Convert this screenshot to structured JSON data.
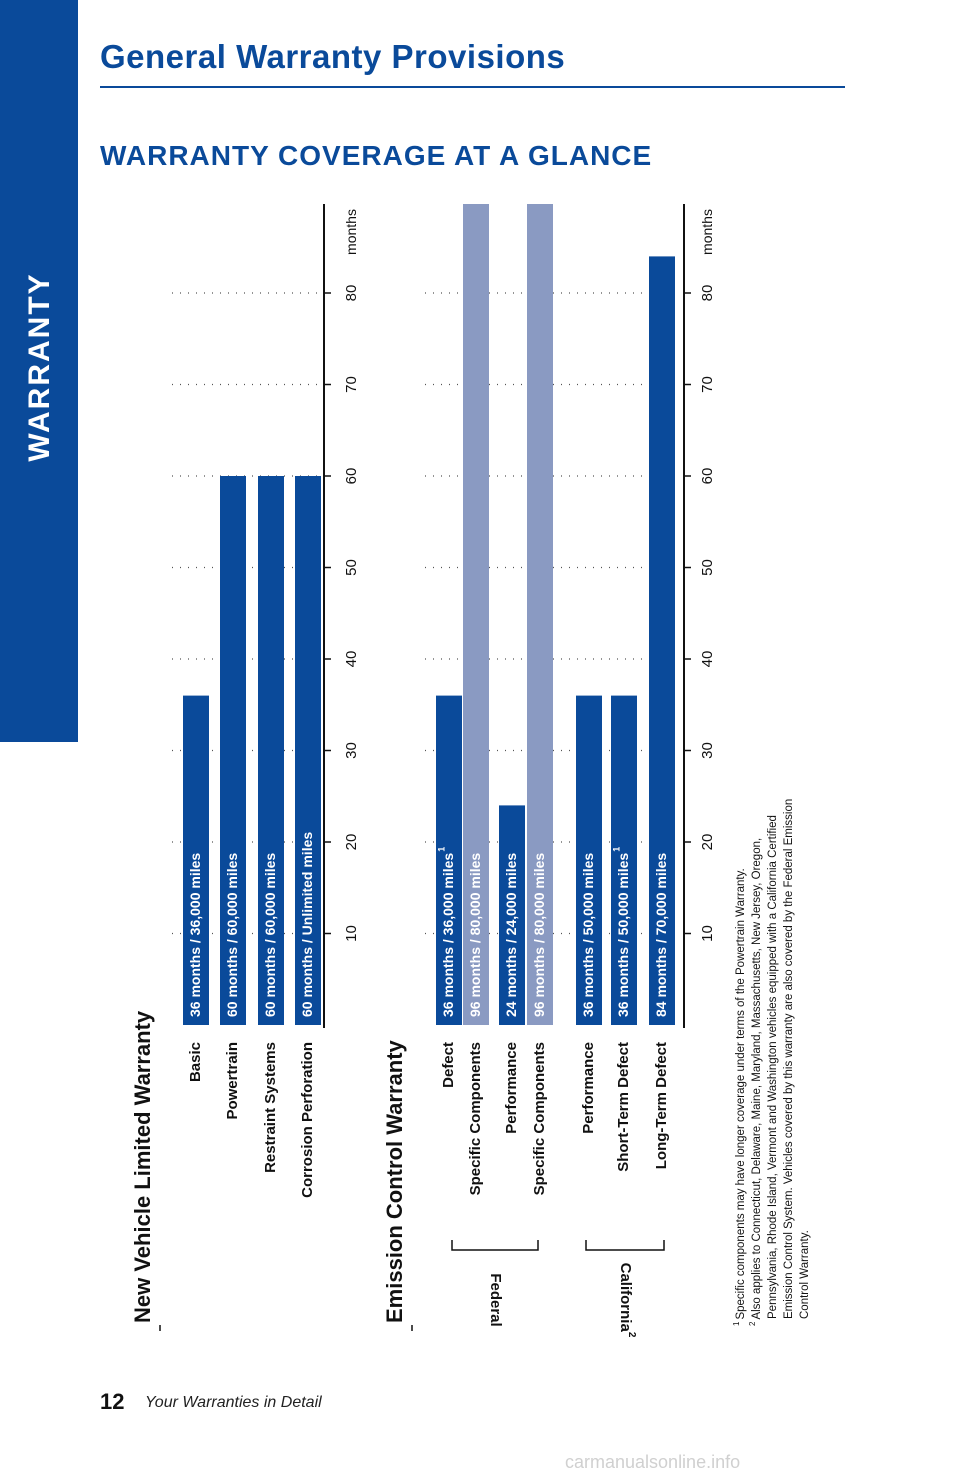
{
  "sidebar": {
    "label": "WARRANTY"
  },
  "header": {
    "title": "General Warranty Provisions"
  },
  "section": {
    "title": "WARRANTY COVERAGE AT A GLANCE"
  },
  "colors": {
    "primary": "#0a4a9a",
    "secondary": "#8a9ac2"
  },
  "chart_data": [
    {
      "type": "bar",
      "title": "New Vehicle Limited Warranty",
      "unit": "months",
      "ticks": [
        10,
        20,
        30,
        40,
        50,
        60,
        70,
        80
      ],
      "xlim": [
        0,
        90
      ],
      "grid": true,
      "rows": [
        {
          "label": "Basic",
          "value": 36,
          "bar_text": "36 months  /  36,000 miles",
          "sup": "",
          "color": "primary"
        },
        {
          "label": "Powertrain",
          "value": 60,
          "bar_text": "60 months  /  60,000 miles",
          "sup": "",
          "color": "primary"
        },
        {
          "label": "Restraint Systems",
          "value": 60,
          "bar_text": "60 months  /  60,000 miles",
          "sup": "",
          "color": "primary"
        },
        {
          "label": "Corrosion Perforation",
          "value": 60,
          "bar_text": "60 months  /  Unlimited miles",
          "sup": "",
          "color": "primary"
        }
      ]
    },
    {
      "type": "bar",
      "title": "Emission Control Warranty",
      "unit": "months",
      "ticks": [
        10,
        20,
        30,
        40,
        50,
        60,
        70,
        80
      ],
      "xlim": [
        0,
        90
      ],
      "grid": true,
      "groups": [
        {
          "label": "Federal",
          "sup": ""
        },
        {
          "label": "California",
          "sup": "2"
        }
      ],
      "rows": [
        {
          "label": "Defect",
          "value": 36,
          "bar_text": "36 months  /  36,000 miles",
          "sup": "1",
          "color": "primary"
        },
        {
          "label": "Specific Components",
          "value": 96,
          "bar_text": "96 months  /  80,000 miles",
          "sup": "",
          "color": "secondary"
        },
        {
          "label": "Performance",
          "value": 24,
          "bar_text": "24 months  /  24,000 miles",
          "sup": "",
          "color": "primary"
        },
        {
          "label": "Specific Components",
          "value": 96,
          "bar_text": "96 months  /  80,000 miles",
          "sup": "",
          "color": "secondary"
        },
        {
          "label": "Performance",
          "value": 36,
          "bar_text": "36 months  /  50,000 miles",
          "sup": "",
          "color": "primary"
        },
        {
          "label": "Short-Term Defect",
          "value": 36,
          "bar_text": "36 months  /  50,000 miles",
          "sup": "1",
          "color": "primary"
        },
        {
          "label": "Long-Term Defect",
          "value": 84,
          "bar_text": "84 months  /  70,000 miles",
          "sup": "",
          "color": "primary"
        }
      ]
    }
  ],
  "footnotes": [
    {
      "num": "1",
      "text": "Specific components may have longer coverage under terms of the Powertrain Warranty."
    },
    {
      "num": "2",
      "text": "Also applies to Connecticut, Delaware, Maine, Maryland, Massachusetts, New Jersey, Oregon,"
    },
    {
      "num": "",
      "text": "Pennsylvania, Rhode Island, Vermont and Washington vehicles equipped with a California Certified"
    },
    {
      "num": "",
      "text": "Emission Control System. Vehicles covered by this warranty are also covered by the Federal Emission"
    },
    {
      "num": "",
      "text": "Control Warranty."
    }
  ],
  "footer": {
    "page_number": "12",
    "text": "Your Warranties in Detail"
  },
  "watermark": {
    "text": "carmanualsonline.info"
  }
}
